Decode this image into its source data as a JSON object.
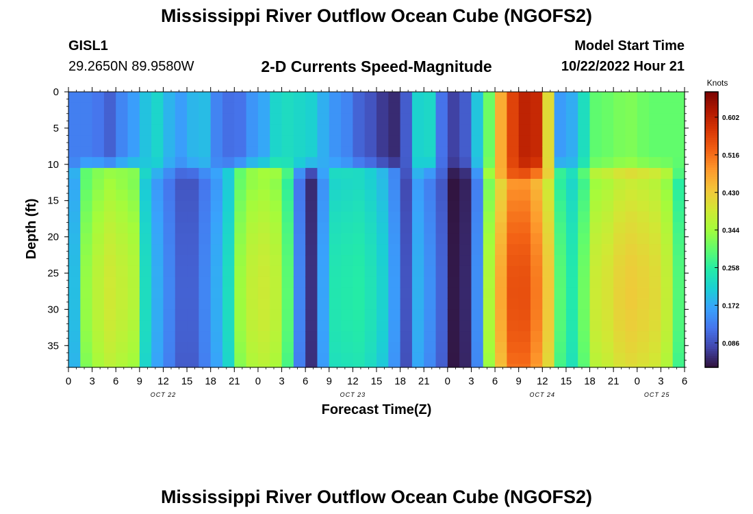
{
  "page": {
    "title": "Mississippi River Outflow Ocean Cube (NGOFS2)",
    "title_repeat": "Mississippi River Outflow Ocean Cube (NGOFS2)"
  },
  "station": {
    "id": "GISL1",
    "coords": "29.2650N  89.9580W"
  },
  "model": {
    "label": "Model Start Time",
    "datetime": "10/22/2022 Hour 21"
  },
  "chart_data": {
    "type": "heatmap",
    "title": "2-D Currents Speed-Magnitude",
    "xlabel": "Forecast Time(Z)",
    "ylabel": "Depth (ft)",
    "y_ticks": [
      "0",
      "5",
      "10",
      "15",
      "20",
      "25",
      "30",
      "35"
    ],
    "y_range_ft": [
      0,
      38
    ],
    "y_inverted": true,
    "x_ticks": [
      "0",
      "3",
      "6",
      "9",
      "12",
      "15",
      "18",
      "21",
      "0",
      "3",
      "6",
      "9",
      "12",
      "15",
      "18",
      "21",
      "0",
      "3",
      "6",
      "9",
      "12",
      "15",
      "18",
      "21",
      "0",
      "3",
      "6"
    ],
    "x_range_hours": [
      0,
      78
    ],
    "day_labels": [
      "OCT 22",
      "OCT 23",
      "OCT 24",
      "OCT 25"
    ],
    "colorbar": {
      "unit": "Knots",
      "ticks": [
        "0.602",
        "0.516",
        "0.430",
        "0.344",
        "0.258",
        "0.172",
        "0.086"
      ],
      "range": [
        0.03,
        0.66
      ],
      "colors": [
        "#30123b",
        "#4145ab",
        "#4675ed",
        "#39a2fc",
        "#1bcfd4",
        "#24eca6",
        "#61fc6c",
        "#a4fc3b",
        "#d1e834",
        "#f3c63a",
        "#fe9b2d",
        "#f36315",
        "#d93806",
        "#b11901",
        "#7a0403"
      ]
    },
    "surface_layer": {
      "depth_ft": [
        0,
        9
      ],
      "keypoints": [
        [
          0,
          0.13
        ],
        [
          3,
          0.13
        ],
        [
          5,
          0.1
        ],
        [
          8,
          0.16
        ],
        [
          11,
          0.22
        ],
        [
          14,
          0.16
        ],
        [
          17,
          0.2
        ],
        [
          18,
          0.14
        ],
        [
          21,
          0.11
        ],
        [
          24,
          0.16
        ],
        [
          27,
          0.23
        ],
        [
          30,
          0.22
        ],
        [
          34,
          0.15
        ],
        [
          38,
          0.09
        ],
        [
          41,
          0.05
        ],
        [
          43,
          0.1
        ],
        [
          45,
          0.27
        ],
        [
          47,
          0.12
        ],
        [
          49,
          0.07
        ],
        [
          50.5,
          0.1
        ],
        [
          53,
          0.3
        ],
        [
          55,
          0.47
        ],
        [
          57,
          0.6
        ],
        [
          59,
          0.6
        ],
        [
          61,
          0.4
        ],
        [
          62,
          0.17
        ],
        [
          63,
          0.1
        ],
        [
          64,
          0.19
        ],
        [
          67,
          0.3
        ],
        [
          71,
          0.32
        ],
        [
          74,
          0.3
        ],
        [
          78,
          0.3
        ]
      ]
    },
    "deep_layer": {
      "depth_ft": [
        12,
        38
      ],
      "keypoints": [
        [
          0,
          0.13
        ],
        [
          1,
          0.2
        ],
        [
          2.5,
          0.34
        ],
        [
          5,
          0.38
        ],
        [
          8,
          0.36
        ],
        [
          10,
          0.22
        ],
        [
          12,
          0.15
        ],
        [
          14,
          0.1
        ],
        [
          16,
          0.1
        ],
        [
          18,
          0.15
        ],
        [
          20,
          0.22
        ],
        [
          22,
          0.34
        ],
        [
          24,
          0.38
        ],
        [
          27,
          0.36
        ],
        [
          29,
          0.14
        ],
        [
          30.5,
          0.05
        ],
        [
          32,
          0.15
        ],
        [
          33,
          0.24
        ],
        [
          37,
          0.25
        ],
        [
          40,
          0.21
        ],
        [
          42,
          0.13
        ],
        [
          43,
          0.08
        ],
        [
          45,
          0.22
        ],
        [
          46,
          0.13
        ],
        [
          47.5,
          0.1
        ],
        [
          49,
          0.03
        ],
        [
          50.5,
          0.05
        ],
        [
          52,
          0.15
        ],
        [
          54,
          0.44
        ],
        [
          57,
          0.55
        ],
        [
          59,
          0.5
        ],
        [
          61,
          0.42
        ],
        [
          62,
          0.3
        ],
        [
          63,
          0.22
        ],
        [
          65,
          0.3
        ],
        [
          67,
          0.38
        ],
        [
          71,
          0.42
        ],
        [
          75,
          0.4
        ],
        [
          77,
          0.3
        ],
        [
          78,
          0.2
        ]
      ]
    }
  }
}
